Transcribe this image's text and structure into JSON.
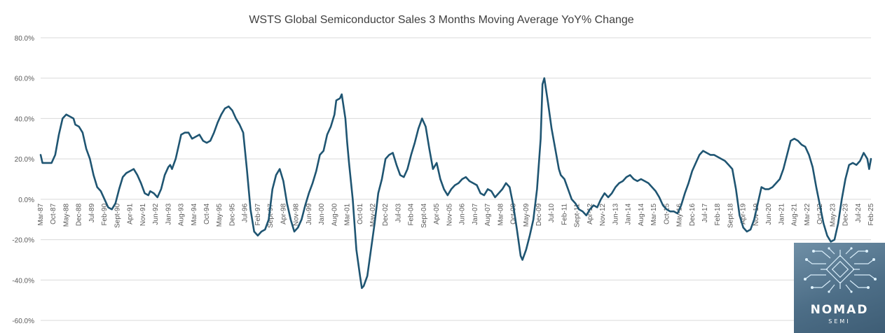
{
  "chart_data": {
    "type": "line",
    "title": "WSTS Global Semiconductor Sales 3 Months Moving Average YoY% Change",
    "xlabel": "",
    "ylabel": "",
    "ylim": [
      -60,
      80
    ],
    "y_ticks": [
      "-60.0%",
      "-40.0%",
      "-20.0%",
      "0.0%",
      "20.0%",
      "40.0%",
      "60.0%",
      "80.0%"
    ],
    "y_tick_values": [
      -60,
      -40,
      -20,
      0,
      20,
      40,
      60,
      80
    ],
    "x_tick_labels": [
      "Mar-87",
      "Oct-87",
      "May-88",
      "Dec-88",
      "Jul-89",
      "Feb-90",
      "Sept-90",
      "Apr-91",
      "Nov-91",
      "Jun-92",
      "Jan-93",
      "Aug-93",
      "Mar-94",
      "Oct-94",
      "May-95",
      "Dec-95",
      "Jul-96",
      "Feb-97",
      "Sept-97",
      "Apr-98",
      "Nov-98",
      "Jun-99",
      "Jan-00",
      "Aug-00",
      "Mar-01",
      "Oct-01",
      "May-02",
      "Dec-02",
      "Jul-03",
      "Feb-04",
      "Sept-04",
      "Apr-05",
      "Nov-05",
      "Jun-06",
      "Jan-07",
      "Aug-07",
      "Mar-08",
      "Oct-08",
      "May-09",
      "Dec-09",
      "Jul-10",
      "Feb-11",
      "Sept-11",
      "Apr-12",
      "Nov-12",
      "Jun-13",
      "Jan-14",
      "Aug-14",
      "Mar-15",
      "Oct-15",
      "May-16",
      "Dec-16",
      "Jul-17",
      "Feb-18",
      "Sept-18",
      "Apr-19",
      "Nov-19",
      "Jun-20",
      "Jan-21",
      "Aug-21",
      "Mar-22",
      "Oct-22",
      "May-23",
      "Dec-23",
      "Jul-24",
      "Feb-25"
    ],
    "x_range": [
      "1987-03",
      "2025-02"
    ],
    "grid": true,
    "legend": "none",
    "series": [
      {
        "color": "#1f5572",
        "points": [
          [
            "1987-03",
            22
          ],
          [
            "1987-04",
            18
          ],
          [
            "1987-07",
            18
          ],
          [
            "1987-09",
            18
          ],
          [
            "1987-11",
            22
          ],
          [
            "1988-01",
            32
          ],
          [
            "1988-03",
            40
          ],
          [
            "1988-05",
            42
          ],
          [
            "1988-07",
            41
          ],
          [
            "1988-09",
            40
          ],
          [
            "1988-10",
            37
          ],
          [
            "1988-12",
            36
          ],
          [
            "1989-02",
            33
          ],
          [
            "1989-04",
            25
          ],
          [
            "1989-06",
            20
          ],
          [
            "1989-08",
            12
          ],
          [
            "1989-10",
            6
          ],
          [
            "1989-12",
            4
          ],
          [
            "1990-02",
            0
          ],
          [
            "1990-04",
            -4
          ],
          [
            "1990-06",
            -5
          ],
          [
            "1990-08",
            -2
          ],
          [
            "1990-10",
            5
          ],
          [
            "1990-12",
            11
          ],
          [
            "1991-02",
            13
          ],
          [
            "1991-04",
            14
          ],
          [
            "1991-06",
            15
          ],
          [
            "1991-08",
            12
          ],
          [
            "1991-10",
            8
          ],
          [
            "1991-12",
            3
          ],
          [
            "1992-02",
            2
          ],
          [
            "1992-03",
            4
          ],
          [
            "1992-05",
            3
          ],
          [
            "1992-07",
            1
          ],
          [
            "1992-09",
            5
          ],
          [
            "1992-11",
            12
          ],
          [
            "1993-01",
            16
          ],
          [
            "1993-02",
            17
          ],
          [
            "1993-03",
            15
          ],
          [
            "1993-05",
            20
          ],
          [
            "1993-07",
            28
          ],
          [
            "1993-08",
            32
          ],
          [
            "1993-10",
            33
          ],
          [
            "1993-12",
            33
          ],
          [
            "1994-02",
            30
          ],
          [
            "1994-04",
            31
          ],
          [
            "1994-06",
            32
          ],
          [
            "1994-08",
            29
          ],
          [
            "1994-10",
            28
          ],
          [
            "1994-12",
            29
          ],
          [
            "1995-02",
            33
          ],
          [
            "1995-04",
            38
          ],
          [
            "1995-06",
            42
          ],
          [
            "1995-08",
            45
          ],
          [
            "1995-10",
            46
          ],
          [
            "1995-12",
            44
          ],
          [
            "1996-02",
            40
          ],
          [
            "1996-04",
            37
          ],
          [
            "1996-06",
            33
          ],
          [
            "1996-08",
            15
          ],
          [
            "1996-10",
            -5
          ],
          [
            "1996-12",
            -16
          ],
          [
            "1997-02",
            -18
          ],
          [
            "1997-04",
            -16
          ],
          [
            "1997-06",
            -15
          ],
          [
            "1997-08",
            -10
          ],
          [
            "1997-10",
            5
          ],
          [
            "1997-12",
            12
          ],
          [
            "1998-02",
            15
          ],
          [
            "1998-04",
            9
          ],
          [
            "1998-06",
            -2
          ],
          [
            "1998-08",
            -10
          ],
          [
            "1998-10",
            -16
          ],
          [
            "1998-12",
            -14
          ],
          [
            "1999-02",
            -10
          ],
          [
            "1999-04",
            -3
          ],
          [
            "1999-06",
            3
          ],
          [
            "1999-08",
            8
          ],
          [
            "1999-10",
            14
          ],
          [
            "1999-12",
            22
          ],
          [
            "2000-02",
            24
          ],
          [
            "2000-04",
            32
          ],
          [
            "2000-06",
            36
          ],
          [
            "2000-08",
            42
          ],
          [
            "2000-09",
            49
          ],
          [
            "2000-11",
            50
          ],
          [
            "2000-12",
            52
          ],
          [
            "2001-02",
            40
          ],
          [
            "2001-03",
            28
          ],
          [
            "2001-04",
            18
          ],
          [
            "2001-06",
            0
          ],
          [
            "2001-08",
            -25
          ],
          [
            "2001-10",
            -38
          ],
          [
            "2001-11",
            -44
          ],
          [
            "2001-12",
            -43
          ],
          [
            "2002-02",
            -38
          ],
          [
            "2002-04",
            -25
          ],
          [
            "2002-06",
            -12
          ],
          [
            "2002-08",
            3
          ],
          [
            "2002-10",
            10
          ],
          [
            "2002-12",
            20
          ],
          [
            "2003-02",
            22
          ],
          [
            "2003-04",
            23
          ],
          [
            "2003-06",
            17
          ],
          [
            "2003-08",
            12
          ],
          [
            "2003-10",
            11
          ],
          [
            "2003-12",
            15
          ],
          [
            "2004-02",
            22
          ],
          [
            "2004-04",
            28
          ],
          [
            "2004-06",
            35
          ],
          [
            "2004-08",
            40
          ],
          [
            "2004-10",
            36
          ],
          [
            "2004-12",
            25
          ],
          [
            "2005-02",
            15
          ],
          [
            "2005-04",
            18
          ],
          [
            "2005-06",
            10
          ],
          [
            "2005-08",
            5
          ],
          [
            "2005-10",
            2
          ],
          [
            "2005-12",
            5
          ],
          [
            "2006-02",
            7
          ],
          [
            "2006-04",
            8
          ],
          [
            "2006-06",
            10
          ],
          [
            "2006-08",
            11
          ],
          [
            "2006-10",
            9
          ],
          [
            "2006-12",
            8
          ],
          [
            "2007-02",
            7
          ],
          [
            "2007-04",
            3
          ],
          [
            "2007-06",
            2
          ],
          [
            "2007-08",
            5
          ],
          [
            "2007-10",
            4
          ],
          [
            "2007-12",
            1
          ],
          [
            "2008-02",
            3
          ],
          [
            "2008-04",
            5
          ],
          [
            "2008-06",
            8
          ],
          [
            "2008-08",
            6
          ],
          [
            "2008-10",
            -3
          ],
          [
            "2008-12",
            -15
          ],
          [
            "2009-02",
            -28
          ],
          [
            "2009-03",
            -30
          ],
          [
            "2009-05",
            -25
          ],
          [
            "2009-07",
            -18
          ],
          [
            "2009-09",
            -10
          ],
          [
            "2009-11",
            5
          ],
          [
            "2010-01",
            30
          ],
          [
            "2010-02",
            57
          ],
          [
            "2010-03",
            60
          ],
          [
            "2010-05",
            48
          ],
          [
            "2010-07",
            35
          ],
          [
            "2010-09",
            25
          ],
          [
            "2010-11",
            15
          ],
          [
            "2010-12",
            12
          ],
          [
            "2011-02",
            10
          ],
          [
            "2011-04",
            5
          ],
          [
            "2011-06",
            0
          ],
          [
            "2011-08",
            -2
          ],
          [
            "2011-10",
            -5
          ],
          [
            "2011-12",
            -6
          ],
          [
            "2012-02",
            -8
          ],
          [
            "2012-04",
            -5
          ],
          [
            "2012-06",
            -3
          ],
          [
            "2012-08",
            -4
          ],
          [
            "2012-10",
            0
          ],
          [
            "2012-12",
            3
          ],
          [
            "2013-02",
            1
          ],
          [
            "2013-04",
            3
          ],
          [
            "2013-06",
            6
          ],
          [
            "2013-08",
            8
          ],
          [
            "2013-10",
            9
          ],
          [
            "2013-12",
            11
          ],
          [
            "2014-02",
            12
          ],
          [
            "2014-04",
            10
          ],
          [
            "2014-06",
            9
          ],
          [
            "2014-08",
            10
          ],
          [
            "2014-10",
            9
          ],
          [
            "2014-12",
            8
          ],
          [
            "2015-02",
            6
          ],
          [
            "2015-04",
            4
          ],
          [
            "2015-06",
            1
          ],
          [
            "2015-08",
            -3
          ],
          [
            "2015-10",
            -5
          ],
          [
            "2015-12",
            -6
          ],
          [
            "2016-02",
            -6
          ],
          [
            "2016-04",
            -7
          ],
          [
            "2016-06",
            -3
          ],
          [
            "2016-08",
            3
          ],
          [
            "2016-10",
            8
          ],
          [
            "2016-12",
            14
          ],
          [
            "2017-02",
            18
          ],
          [
            "2017-04",
            22
          ],
          [
            "2017-06",
            24
          ],
          [
            "2017-08",
            23
          ],
          [
            "2017-10",
            22
          ],
          [
            "2017-12",
            22
          ],
          [
            "2018-02",
            21
          ],
          [
            "2018-04",
            20
          ],
          [
            "2018-06",
            19
          ],
          [
            "2018-08",
            17
          ],
          [
            "2018-10",
            15
          ],
          [
            "2018-12",
            5
          ],
          [
            "2019-02",
            -8
          ],
          [
            "2019-04",
            -14
          ],
          [
            "2019-06",
            -16
          ],
          [
            "2019-08",
            -15
          ],
          [
            "2019-10",
            -10
          ],
          [
            "2019-12",
            -2
          ],
          [
            "2020-02",
            6
          ],
          [
            "2020-04",
            5
          ],
          [
            "2020-06",
            5
          ],
          [
            "2020-08",
            6
          ],
          [
            "2020-10",
            8
          ],
          [
            "2020-12",
            10
          ],
          [
            "2021-02",
            15
          ],
          [
            "2021-04",
            22
          ],
          [
            "2021-06",
            29
          ],
          [
            "2021-08",
            30
          ],
          [
            "2021-10",
            29
          ],
          [
            "2021-12",
            27
          ],
          [
            "2022-02",
            26
          ],
          [
            "2022-04",
            22
          ],
          [
            "2022-06",
            16
          ],
          [
            "2022-08",
            6
          ],
          [
            "2022-10",
            -3
          ],
          [
            "2022-12",
            -12
          ],
          [
            "2023-02",
            -18
          ],
          [
            "2023-04",
            -21
          ],
          [
            "2023-06",
            -20
          ],
          [
            "2023-08",
            -12
          ],
          [
            "2023-10",
            0
          ],
          [
            "2023-12",
            10
          ],
          [
            "2024-02",
            17
          ],
          [
            "2024-04",
            18
          ],
          [
            "2024-06",
            17
          ],
          [
            "2024-08",
            19
          ],
          [
            "2024-10",
            23
          ],
          [
            "2024-12",
            20
          ],
          [
            "2025-01",
            15
          ],
          [
            "2025-02",
            20
          ]
        ]
      }
    ]
  },
  "logo": {
    "word": "NOMAD",
    "subword": "SEMI"
  }
}
